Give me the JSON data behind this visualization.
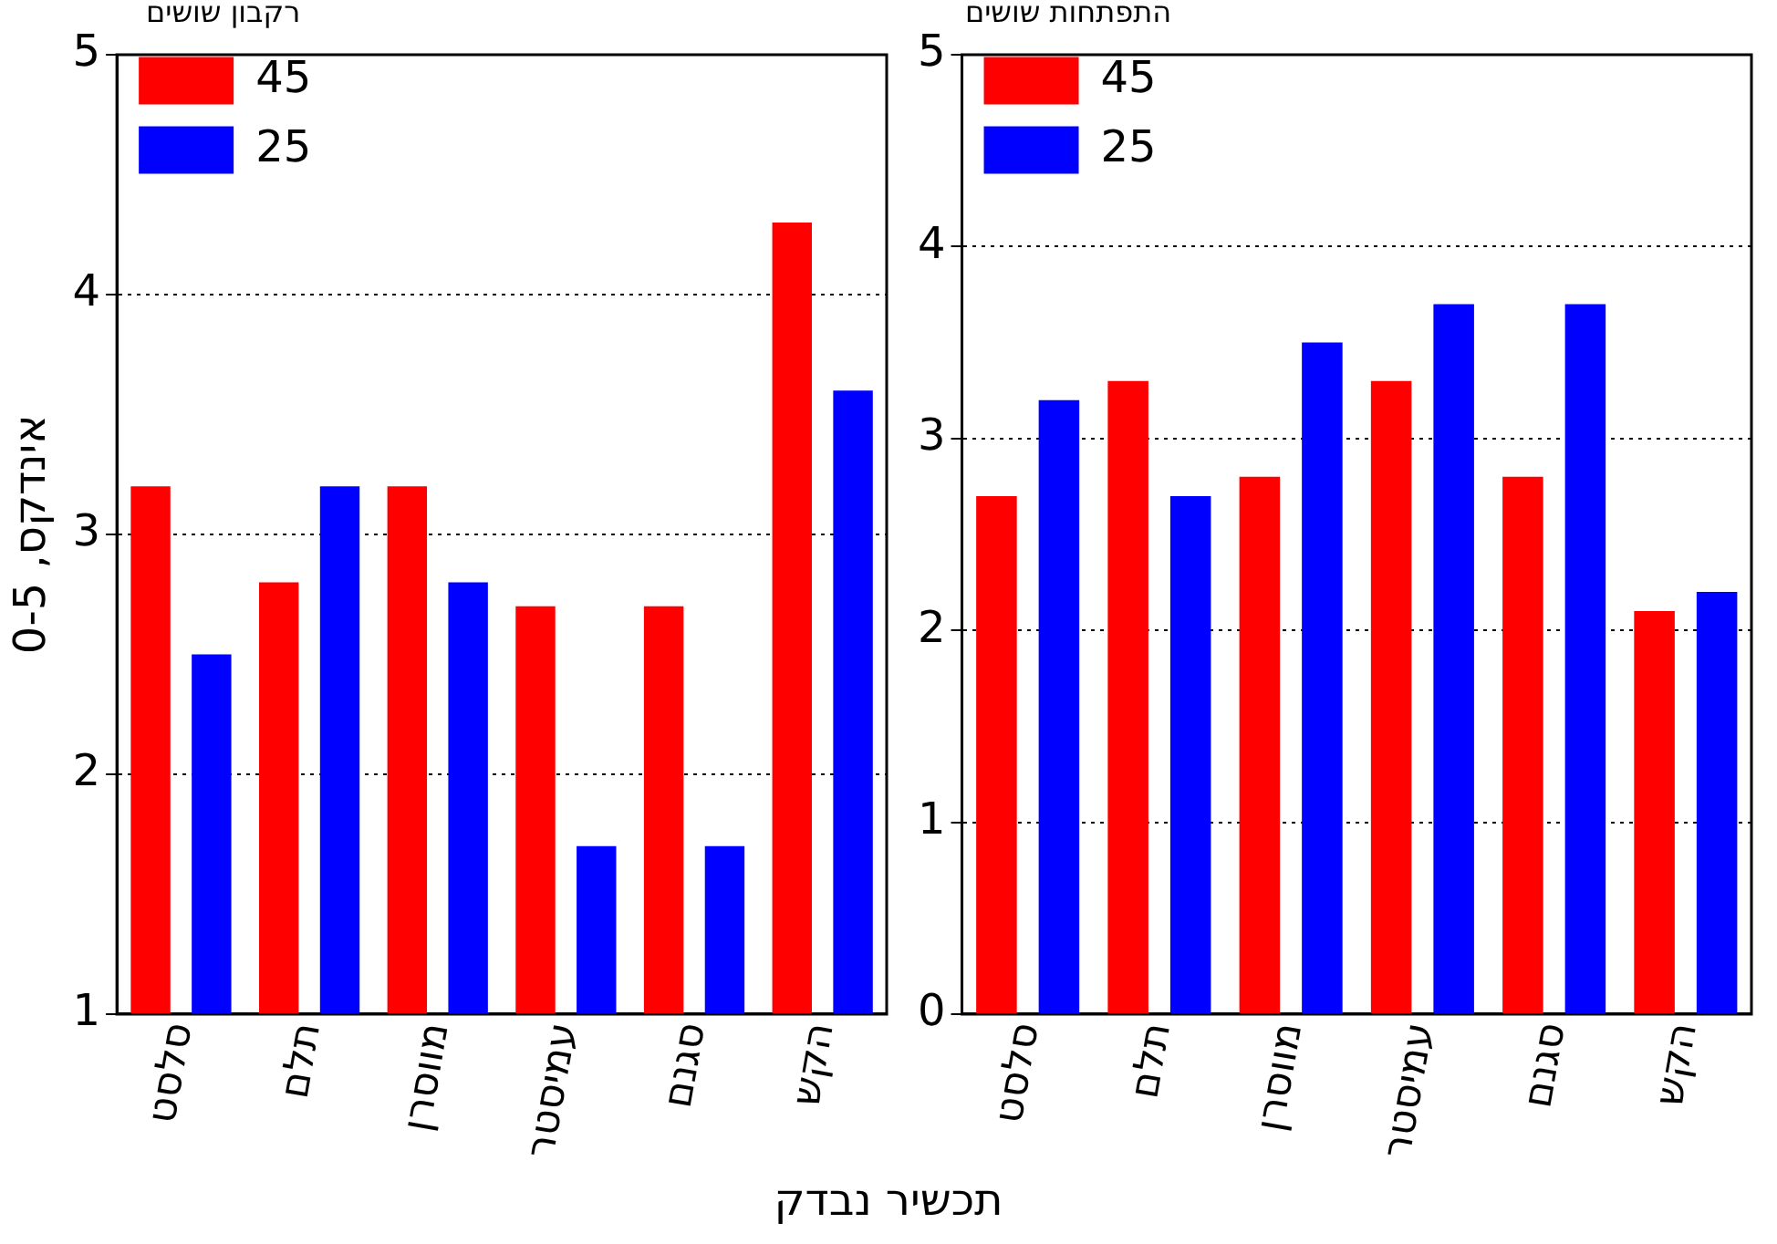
{
  "chart_data": [
    {
      "type": "bar",
      "ylabel": "אינדקס, 0-5",
      "xlabel": "תכשיר נבדק",
      "legend_title": "רקבון שושים",
      "categories": [
        "סלסט",
        "תלם",
        "מווסרן",
        "עמיסטר",
        "סגנם",
        "הקש"
      ],
      "series": [
        {
          "name": "45",
          "color": "#ff0000",
          "values": [
            3.2,
            2.8,
            3.2,
            2.7,
            2.7,
            4.3
          ]
        },
        {
          "name": "25",
          "color": "#0000ff",
          "values": [
            2.5,
            3.2,
            2.8,
            1.7,
            1.7,
            3.6
          ]
        }
      ],
      "ylim": [
        1,
        5
      ],
      "yticks": [
        1,
        2,
        3,
        4,
        5
      ],
      "grid": "y",
      "legend": "top left"
    },
    {
      "type": "bar",
      "legend_title": "התפתחות שושים",
      "categories": [
        "סלסט",
        "תלם",
        "מווסרן",
        "עמיסטר",
        "סגנם",
        "הקש"
      ],
      "series": [
        {
          "name": "45",
          "color": "#ff0000",
          "values": [
            2.7,
            3.3,
            2.8,
            3.3,
            2.8,
            2.1
          ]
        },
        {
          "name": "25",
          "color": "#0000ff",
          "values": [
            3.2,
            2.7,
            3.5,
            3.7,
            3.7,
            2.2
          ]
        }
      ],
      "ylim": [
        0,
        5
      ],
      "yticks": [
        0,
        1,
        2,
        3,
        4,
        5
      ],
      "grid": "y",
      "legend": "top left"
    }
  ]
}
